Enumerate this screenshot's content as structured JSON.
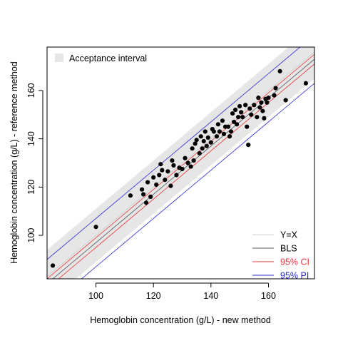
{
  "chart_data": {
    "type": "scatter",
    "xlabel": "Hemoglobin concentration (g/L) - new method",
    "ylabel": "Hemoglobin concentration (g/L) - reference method",
    "xlim": [
      83,
      176
    ],
    "ylim": [
      82,
      178
    ],
    "x_ticks": [
      100,
      120,
      140,
      160
    ],
    "y_ticks": [
      100,
      120,
      140,
      160
    ],
    "grid": false,
    "legend_top": {
      "position": "top-left",
      "label": "Acceptance interval",
      "color": "#e6e6e6"
    },
    "legend_bottom": {
      "position": "bottom-right",
      "entries": [
        {
          "label": "Y=X",
          "color": "#d3d3d3"
        },
        {
          "label": "BLS",
          "color": "#555555"
        },
        {
          "label": "95% CI",
          "color": "#e8353a"
        },
        {
          "label": "95% PI",
          "color": "#2b2bd6"
        }
      ]
    },
    "acceptance_band": {
      "lower_intercept": -11,
      "upper_intercept": 11,
      "slope": 1
    },
    "lines": {
      "bls": {
        "intercept": -3.0,
        "slope": 1.0,
        "color": "#555555"
      },
      "ci_lower": {
        "intercept": -5.0,
        "slope": 1.0,
        "color": "#e8353a"
      },
      "ci_upper": {
        "intercept": -1.0,
        "slope": 1.0,
        "color": "#e8353a"
      },
      "pi_lower": {
        "intercept": -13.0,
        "slope": 1.0,
        "color": "#2b2bd6"
      },
      "pi_upper": {
        "intercept": 7.0,
        "slope": 1.0,
        "color": "#2b2bd6"
      }
    },
    "points": [
      [
        85,
        87.5
      ],
      [
        100,
        103.5
      ],
      [
        112,
        116.5
      ],
      [
        116,
        119
      ],
      [
        116.5,
        117
      ],
      [
        117.5,
        113.5
      ],
      [
        118,
        122
      ],
      [
        119,
        116
      ],
      [
        120,
        124
      ],
      [
        121,
        121
      ],
      [
        122,
        125
      ],
      [
        122.5,
        129.5
      ],
      [
        123,
        127
      ],
      [
        124,
        123
      ],
      [
        125,
        126.5
      ],
      [
        126,
        120.5
      ],
      [
        126.5,
        131
      ],
      [
        127,
        129
      ],
      [
        128,
        125
      ],
      [
        129,
        128
      ],
      [
        130,
        127.5
      ],
      [
        131,
        132
      ],
      [
        132,
        130
      ],
      [
        133,
        128.5
      ],
      [
        133.5,
        136
      ],
      [
        134,
        131
      ],
      [
        134.5,
        138
      ],
      [
        135,
        139.5
      ],
      [
        136,
        134
      ],
      [
        136.5,
        141
      ],
      [
        137,
        136
      ],
      [
        137.5,
        139
      ],
      [
        138,
        143
      ],
      [
        138.5,
        137
      ],
      [
        139,
        140.5
      ],
      [
        140,
        138.5
      ],
      [
        140.5,
        144
      ],
      [
        141,
        143
      ],
      [
        142,
        141
      ],
      [
        142.5,
        146
      ],
      [
        143,
        143
      ],
      [
        144,
        147.5
      ],
      [
        144.5,
        142
      ],
      [
        145,
        145
      ],
      [
        146,
        145
      ],
      [
        146.5,
        141
      ],
      [
        147,
        143
      ],
      [
        147.5,
        150.5
      ],
      [
        148,
        147
      ],
      [
        148.5,
        152
      ],
      [
        149,
        146
      ],
      [
        149.5,
        149
      ],
      [
        150,
        153.5
      ],
      [
        150.5,
        151
      ],
      [
        151,
        149
      ],
      [
        152,
        154
      ],
      [
        152.5,
        145
      ],
      [
        153,
        137.5
      ],
      [
        153.5,
        152.5
      ],
      [
        154,
        150
      ],
      [
        155,
        154
      ],
      [
        156,
        149
      ],
      [
        156.5,
        157
      ],
      [
        157,
        153
      ],
      [
        157.5,
        155
      ],
      [
        158,
        151.5
      ],
      [
        158.5,
        148.5
      ],
      [
        159,
        156.5
      ],
      [
        159.5,
        155
      ],
      [
        160,
        157
      ],
      [
        162,
        158
      ],
      [
        162.5,
        161
      ],
      [
        164,
        168
      ],
      [
        166,
        156
      ],
      [
        173,
        163
      ]
    ]
  }
}
